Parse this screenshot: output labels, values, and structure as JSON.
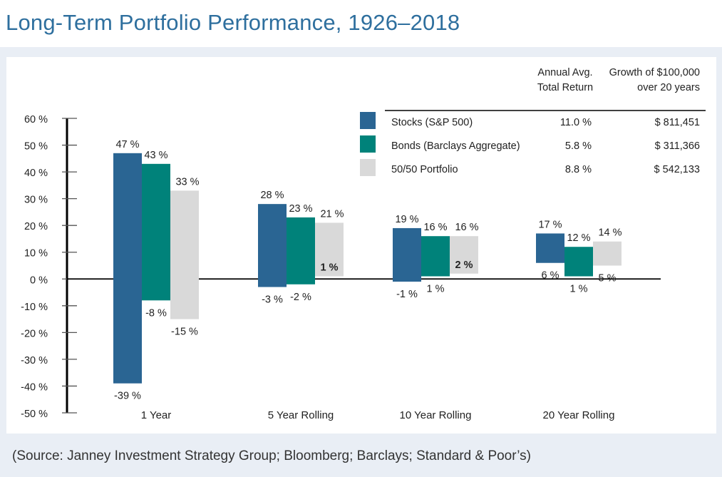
{
  "title": "Long-Term Portfolio Performance, 1926–2018",
  "source": "(Source: Janney Investment Strategy Group; Bloomberg; Barclays; Standard & Poor’s)",
  "colors": {
    "stocks": "#2a6593",
    "bonds": "#00827a",
    "portfolio": "#d9d9d9",
    "title": "#2e6f9e",
    "background": "#e9eef5"
  },
  "chart_data": {
    "type": "bar",
    "subtype": "floating range (max/min)",
    "title": "Long-Term Portfolio Performance, 1926–2018",
    "ylim": [
      -50,
      60
    ],
    "yticks": [
      60,
      50,
      40,
      30,
      20,
      10,
      0,
      -10,
      -20,
      -30,
      -40,
      -50
    ],
    "ytick_labels": [
      "60 %",
      "50 %",
      "40 %",
      "30 %",
      "20 %",
      "10 %",
      "0 %",
      "-10 %",
      "-20 %",
      "-30 %",
      "-40 %",
      "-50 %"
    ],
    "categories": [
      "1 Year",
      "5 Year Rolling",
      "10 Year Rolling",
      "20 Year Rolling"
    ],
    "series": [
      {
        "name": "Stocks (S&P 500)",
        "max": [
          47,
          28,
          19,
          17
        ],
        "min": [
          -39,
          -3,
          -1,
          6
        ],
        "max_labels": [
          "47 %",
          "28 %",
          "19 %",
          "17 %"
        ],
        "min_labels": [
          "-39 %",
          "-3 %",
          "-1 %",
          "6 %"
        ]
      },
      {
        "name": "Bonds (Barclays Aggregate)",
        "max": [
          43,
          23,
          16,
          12
        ],
        "min": [
          -8,
          -2,
          1,
          1
        ],
        "max_labels": [
          "43 %",
          "23 %",
          "16 %",
          "12 %"
        ],
        "min_labels": [
          "-8 %",
          "-2 %",
          "1 %",
          "1 %"
        ]
      },
      {
        "name": "50/50 Portfolio",
        "max": [
          33,
          21,
          16,
          14
        ],
        "min": [
          -15,
          1,
          2,
          5
        ],
        "max_labels": [
          "33 %",
          "21 %",
          "16 %",
          "14 %"
        ],
        "min_labels": [
          "-15 %",
          "1 %",
          "2 %",
          "5 %"
        ]
      }
    ],
    "legend": {
      "placement": "top-right",
      "header_return": [
        "Annual Avg.",
        "Total Return"
      ],
      "header_growth": [
        "Growth of $100,000",
        "over 20 years"
      ],
      "rows": [
        {
          "name": "Stocks (S&P 500)",
          "avg_return": "11.0 %",
          "growth": "$ 811,451"
        },
        {
          "name": "Bonds (Barclays Aggregate)",
          "avg_return": "5.8 %",
          "growth": "$ 311,366"
        },
        {
          "name": "50/50 Portfolio",
          "avg_return": "8.8 %",
          "growth": "$ 542,133"
        }
      ]
    }
  }
}
